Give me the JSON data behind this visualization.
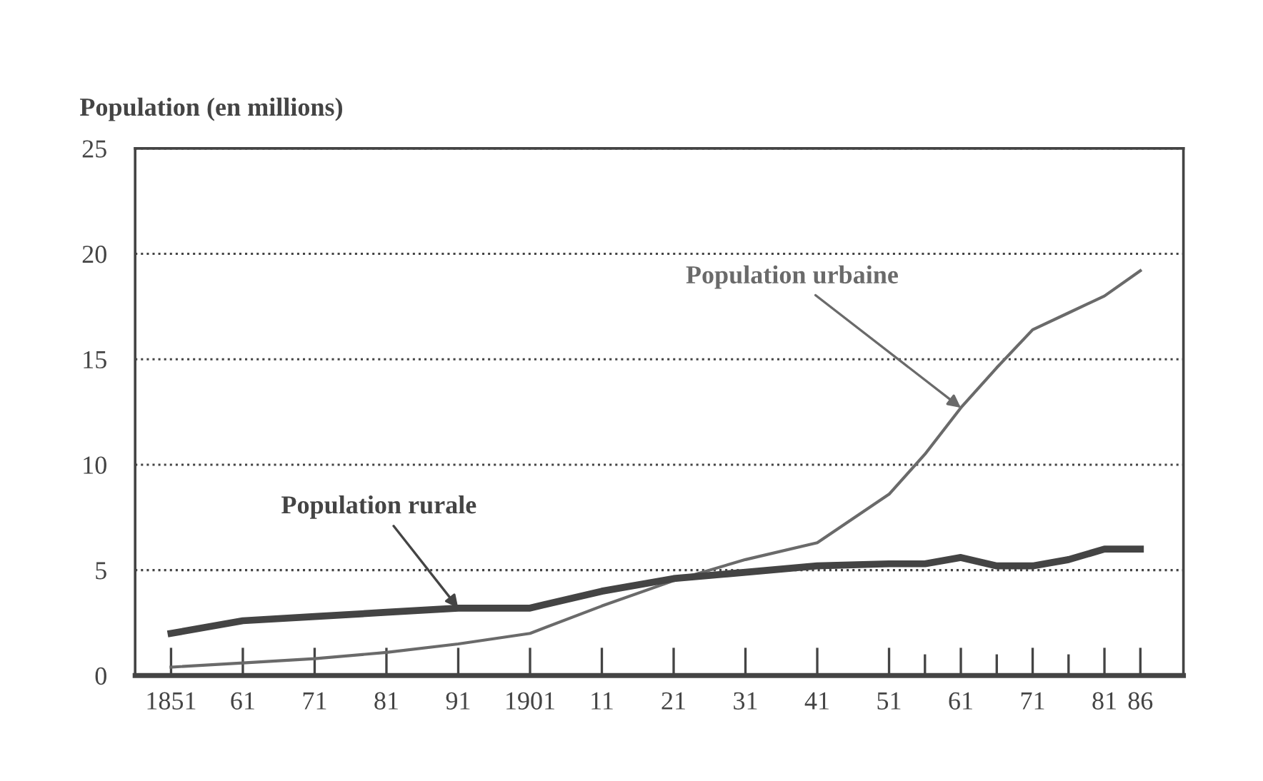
{
  "chart_data": {
    "type": "line",
    "ylabel": "Population (en millions)",
    "x": [
      1851,
      1861,
      1871,
      1881,
      1891,
      1901,
      1911,
      1921,
      1931,
      1941,
      1951,
      1956,
      1961,
      1966,
      1971,
      1976,
      1981,
      1986
    ],
    "series": [
      {
        "name": "Population urbaine",
        "color": "#6a6a6a",
        "values": [
          0.4,
          0.6,
          0.8,
          1.1,
          1.5,
          2.0,
          3.3,
          4.5,
          5.5,
          6.3,
          8.6,
          10.5,
          12.7,
          14.6,
          16.4,
          17.2,
          18.0,
          19.2
        ]
      },
      {
        "name": "Population rurale",
        "color": "#444444",
        "values": [
          2.0,
          2.6,
          2.8,
          3.0,
          3.2,
          3.2,
          4.0,
          4.6,
          4.9,
          5.2,
          5.3,
          5.3,
          5.6,
          5.2,
          5.2,
          5.5,
          6.0,
          6.0
        ]
      }
    ],
    "xlim": [
      1846,
      1992
    ],
    "ylim": [
      0,
      25
    ],
    "xticks": [
      1851,
      {
        "value": 1861,
        "label": "61"
      },
      {
        "value": 1871,
        "label": "71"
      },
      {
        "value": 1881,
        "label": "81"
      },
      {
        "value": 1891,
        "label": "91"
      },
      1901,
      {
        "value": 1911,
        "label": "11"
      },
      {
        "value": 1921,
        "label": "21"
      },
      {
        "value": 1931,
        "label": "31"
      },
      {
        "value": 1941,
        "label": "41"
      },
      {
        "value": 1951,
        "label": "51"
      },
      {
        "value": 1956,
        "label": null
      },
      {
        "value": 1961,
        "label": "61"
      },
      {
        "value": 1966,
        "label": null
      },
      {
        "value": 1971,
        "label": "71"
      },
      {
        "value": 1976,
        "label": null
      },
      {
        "value": 1981,
        "label": "81"
      },
      {
        "value": 1986,
        "label": "86"
      }
    ],
    "yticks": [
      0,
      5,
      10,
      15,
      20,
      25
    ],
    "grid": "y",
    "legend": false,
    "marker": "none",
    "line_style": "solid"
  }
}
